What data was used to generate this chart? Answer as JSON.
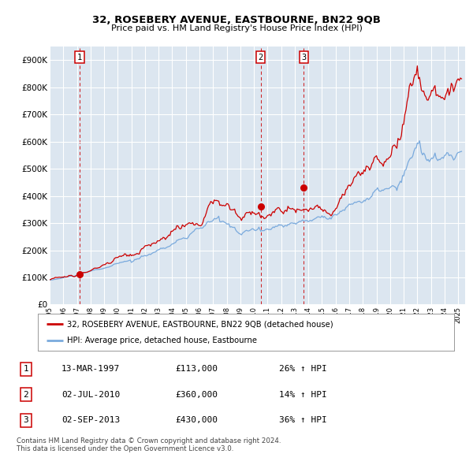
{
  "title": "32, ROSEBERY AVENUE, EASTBOURNE, BN22 9QB",
  "subtitle": "Price paid vs. HM Land Registry's House Price Index (HPI)",
  "title_fontsize": 9.5,
  "subtitle_fontsize": 8.0,
  "plot_bg_color": "#dce6f0",
  "fig_bg_color": "#ffffff",
  "red_line_color": "#cc0000",
  "blue_line_color": "#7aaadd",
  "grid_color": "#ffffff",
  "dashed_color": "#cc0000",
  "ylim": [
    0,
    950000
  ],
  "yticks": [
    0,
    100000,
    200000,
    300000,
    400000,
    500000,
    600000,
    700000,
    800000,
    900000
  ],
  "ytick_labels": [
    "£0",
    "£100K",
    "£200K",
    "£300K",
    "£400K",
    "£500K",
    "£600K",
    "£700K",
    "£800K",
    "£900K"
  ],
  "sale_dates": [
    1997.19,
    2010.5,
    2013.67
  ],
  "sale_prices": [
    113000,
    360000,
    430000
  ],
  "sale_labels": [
    "1",
    "2",
    "3"
  ],
  "legend_red": "32, ROSEBERY AVENUE, EASTBOURNE, BN22 9QB (detached house)",
  "legend_blue": "HPI: Average price, detached house, Eastbourne",
  "table_data": [
    [
      "1",
      "13-MAR-1997",
      "£113,000",
      "26% ↑ HPI"
    ],
    [
      "2",
      "02-JUL-2010",
      "£360,000",
      "14% ↑ HPI"
    ],
    [
      "3",
      "02-SEP-2013",
      "£430,000",
      "36% ↑ HPI"
    ]
  ],
  "footer": "Contains HM Land Registry data © Crown copyright and database right 2024.\nThis data is licensed under the Open Government Licence v3.0.",
  "xmin": 1995.0,
  "xmax": 2025.5
}
